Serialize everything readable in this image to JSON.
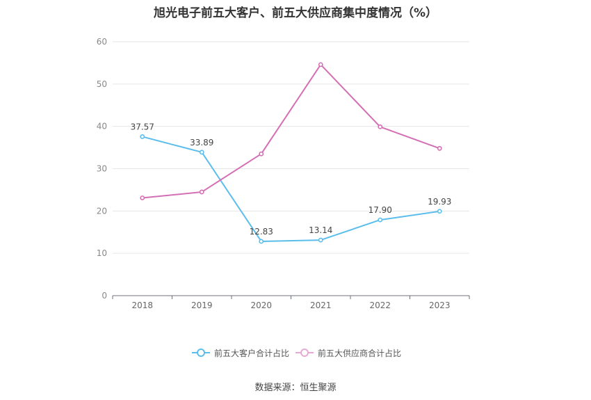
{
  "chart_data": {
    "type": "line",
    "title": "旭光电子前五大客户、前五大供应商集中度情况（%）",
    "categories": [
      "2018",
      "2019",
      "2020",
      "2021",
      "2022",
      "2023"
    ],
    "ylim": [
      0,
      60
    ],
    "yticks": [
      "0",
      "10",
      "20",
      "30",
      "40",
      "50",
      "60"
    ],
    "grid": true,
    "legend_position": "bottom",
    "series": [
      {
        "name": "前五大客户合计占比",
        "color": "#5bbdec",
        "values": [
          37.57,
          33.89,
          12.83,
          13.14,
          17.9,
          19.93
        ],
        "labels": [
          "37.57",
          "33.89",
          "12.83",
          "13.14",
          "17.90",
          "19.93"
        ]
      },
      {
        "name": "前五大供应商合计占比",
        "color": "#d36fb4",
        "values": [
          23.1,
          24.5,
          33.5,
          54.6,
          39.9,
          34.8
        ]
      }
    ]
  },
  "source": "数据来源：恒生聚源"
}
